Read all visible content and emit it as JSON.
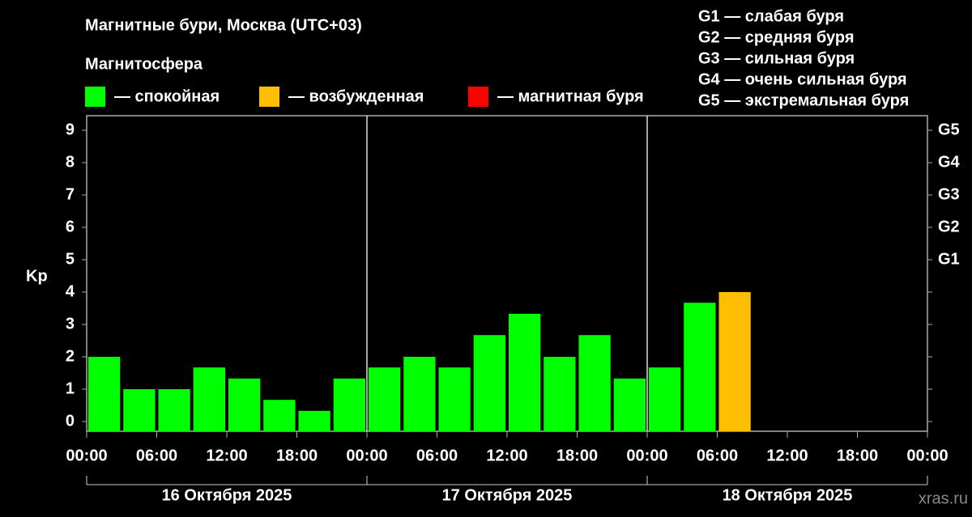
{
  "chart_data": {
    "type": "bar",
    "title": "Магнитные бури, Москва (UTC+03)",
    "subtitle": "Магнитосфера",
    "legend": [
      {
        "label": "— спокойная",
        "color": "#00ff00"
      },
      {
        "label": "— возбужденная",
        "color": "#ffbf00"
      },
      {
        "label": "— магнитная буря",
        "color": "#ff0000"
      }
    ],
    "storm_levels": [
      "G1 — слабая буря",
      "G2 — средняя буря",
      "G3 — сильная буря",
      "G4 — очень сильная буря",
      "G5 — экстремальная буря"
    ],
    "ylabel": "Kp",
    "x": [
      0,
      3,
      6,
      9,
      12,
      15,
      18,
      21,
      24,
      27,
      30,
      33,
      36,
      39,
      42,
      45,
      48,
      51,
      54
    ],
    "values": [
      2,
      1,
      1,
      1.67,
      1.33,
      0.67,
      0.33,
      1.33,
      1.67,
      2,
      1.67,
      2.67,
      3.33,
      2,
      2.67,
      1.33,
      1.67,
      3.67,
      4
    ],
    "colors": [
      "#00ff00",
      "#00ff00",
      "#00ff00",
      "#00ff00",
      "#00ff00",
      "#00ff00",
      "#00ff00",
      "#00ff00",
      "#00ff00",
      "#00ff00",
      "#00ff00",
      "#00ff00",
      "#00ff00",
      "#00ff00",
      "#00ff00",
      "#00ff00",
      "#00ff00",
      "#00ff00",
      "#ffbf00"
    ],
    "bar_width": 3,
    "xlim": [
      0,
      72
    ],
    "xticks": [
      {
        "value": 0,
        "label": "00:00"
      },
      {
        "value": 6,
        "label": "06:00"
      },
      {
        "value": 12,
        "label": "12:00"
      },
      {
        "value": 18,
        "label": "18:00"
      },
      {
        "value": 24,
        "label": "00:00"
      },
      {
        "value": 30,
        "label": "06:00"
      },
      {
        "value": 36,
        "label": "12:00"
      },
      {
        "value": 42,
        "label": "18:00"
      },
      {
        "value": 48,
        "label": "00:00"
      },
      {
        "value": 54,
        "label": "06:00"
      },
      {
        "value": 60,
        "label": "12:00"
      },
      {
        "value": 66,
        "label": "18:00"
      },
      {
        "value": 72,
        "label": "00:00"
      }
    ],
    "day_bounds": [
      0,
      24,
      48,
      72
    ],
    "day_labels": [
      "16 Октября 2025",
      "17 Октября 2025",
      "18 Октября 2025"
    ],
    "ylim": [
      -0.3,
      9.45
    ],
    "yticks": [
      0,
      1,
      2,
      3,
      4,
      5,
      6,
      7,
      8,
      9
    ],
    "y2ticks": [
      {
        "value": 5,
        "label": "G1"
      },
      {
        "value": 6,
        "label": "G2"
      },
      {
        "value": 7,
        "label": "G3"
      },
      {
        "value": 8,
        "label": "G4"
      },
      {
        "value": 9,
        "label": "G5"
      }
    ],
    "watermark": "xras.ru"
  }
}
